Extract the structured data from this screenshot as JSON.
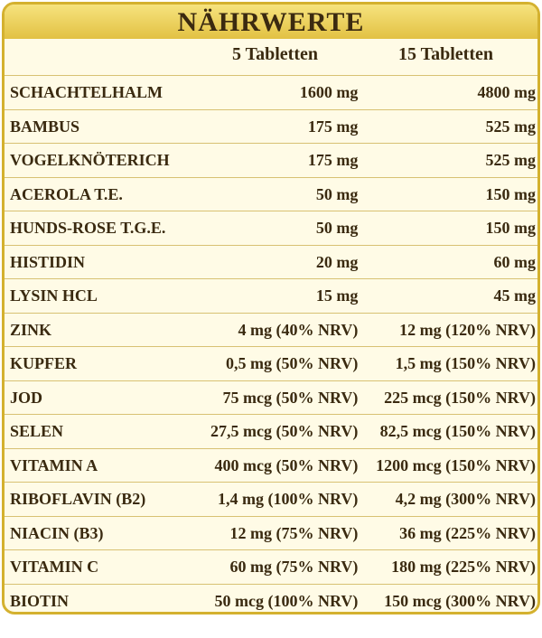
{
  "header": {
    "title": "NÄHRWERTE"
  },
  "table": {
    "columns": [
      "5 Tabletten",
      "15 Tabletten"
    ],
    "rows": [
      [
        "SCHACHTELHALM",
        "1600 mg",
        "4800 mg"
      ],
      [
        "BAMBUS",
        "175 mg",
        "525 mg"
      ],
      [
        "VOGELKNÖTERICH",
        "175 mg",
        "525 mg"
      ],
      [
        "ACEROLA T.E.",
        "50 mg",
        "150 mg"
      ],
      [
        "HUNDS-ROSE T.G.E.",
        "50 mg",
        "150 mg"
      ],
      [
        "HISTIDIN",
        "20 mg",
        "60 mg"
      ],
      [
        "LYSIN HCL",
        "15 mg",
        "45 mg"
      ],
      [
        "ZINK",
        "4 mg (40% NRV)",
        "12 mg (120% NRV)"
      ],
      [
        "KUPFER",
        "0,5 mg (50% NRV)",
        "1,5 mg (150% NRV)"
      ],
      [
        "JOD",
        "75 mcg (50% NRV)",
        "225 mcg (150% NRV)"
      ],
      [
        "SELEN",
        "27,5 mcg (50% NRV)",
        "82,5 mcg (150% NRV)"
      ],
      [
        "VITAMIN A",
        "400 mcg (50% NRV)",
        "1200 mcg (150% NRV)"
      ],
      [
        "RIBOFLAVIN (B2)",
        "1,4 mg (100% NRV)",
        "4,2 mg (300% NRV)"
      ],
      [
        "NIACIN (B3)",
        "12 mg (75% NRV)",
        "36 mg (225% NRV)"
      ],
      [
        "VITAMIN C",
        "60 mg (75% NRV)",
        "180 mg (225% NRV)"
      ],
      [
        "BIOTIN",
        "50 mcg (100% NRV)",
        "150 mcg (300% NRV)"
      ]
    ]
  }
}
